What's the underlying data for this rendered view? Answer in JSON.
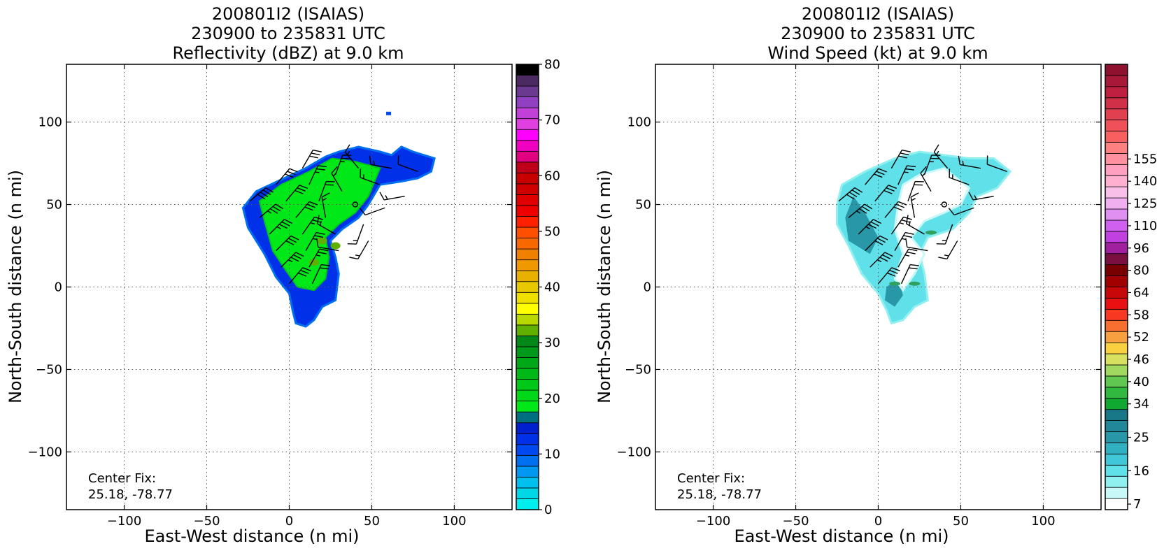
{
  "panels": [
    {
      "title_lines": [
        "200801I2 (ISAIAS)",
        "230900 to 235831 UTC",
        "Reflectivity (dBZ) at 9.0 km"
      ],
      "center_fix_label": "Center Fix:",
      "center_fix_value": "25.18, -78.77",
      "colorbar": {
        "min": 0,
        "max": 80,
        "tick_values": [
          0,
          10,
          20,
          30,
          40,
          50,
          60,
          70,
          80
        ],
        "tick_labels": [
          "0",
          "10",
          "20",
          "30",
          "40",
          "50",
          "60",
          "70",
          "80"
        ],
        "colors": [
          "#00eeee",
          "#00d8e8",
          "#00c0f0",
          "#0098f0",
          "#0070f0",
          "#0048f0",
          "#0030e8",
          "#0020d0",
          "#007080",
          "#00e818",
          "#00d818",
          "#00c818",
          "#00b818",
          "#00a818",
          "#009818",
          "#008818",
          "#60b000",
          "#b8d800",
          "#ffff00",
          "#f0e000",
          "#e8c800",
          "#e8b000",
          "#f09800",
          "#f08000",
          "#f86800",
          "#ff5000",
          "#ff2000",
          "#ee0000",
          "#e00000",
          "#d00000",
          "#c80000",
          "#c00018",
          "#e00080",
          "#f000c0",
          "#ff00ff",
          "#e040e0",
          "#c040d8",
          "#9040c0",
          "#6a3a90",
          "#4a2a60",
          "#000000"
        ]
      }
    },
    {
      "title_lines": [
        "200801I2 (ISAIAS)",
        "230900 to 235831 UTC",
        "Wind Speed (kt) at 9.0 km"
      ],
      "center_fix_label": "Center Fix:",
      "center_fix_value": "25.18, -78.77",
      "colorbar": {
        "tick_labels": [
          "7",
          "16",
          "25",
          "34",
          "40",
          "46",
          "52",
          "58",
          "64",
          "80",
          "96",
          "110",
          "125",
          "140",
          "155"
        ],
        "tick_bin_index": [
          0,
          3,
          6,
          9,
          11,
          13,
          15,
          17,
          19,
          21,
          23,
          25,
          27,
          29,
          31
        ],
        "colors": [
          "#ffffff",
          "#c8f8f8",
          "#90f0f0",
          "#60e0e8",
          "#40c8d8",
          "#30b0c0",
          "#2898a8",
          "#208898",
          "#187888",
          "#10a830",
          "#30b840",
          "#60c850",
          "#a0d860",
          "#d8e060",
          "#f8d040",
          "#f8a040",
          "#f87030",
          "#f83820",
          "#e81010",
          "#c80808",
          "#a00000",
          "#780000",
          "#7a1040",
          "#a020a0",
          "#c040e0",
          "#d060f0",
          "#e090f0",
          "#f0b0f0",
          "#f8c0e8",
          "#ffb0d0",
          "#ffa0c0",
          "#ff90a0",
          "#ff8080",
          "#f86060",
          "#f05058",
          "#e04050",
          "#d03048",
          "#c02040",
          "#a81838",
          "#901030"
        ]
      }
    }
  ],
  "axes": {
    "xlabel": "East-West distance (n mi)",
    "ylabel": "North-South distance (n mi)",
    "range": [
      -135,
      135
    ],
    "ticks": [
      -100,
      -50,
      0,
      50,
      100
    ],
    "tick_labels": [
      "−100",
      "−50",
      "0",
      "50",
      "100"
    ]
  },
  "chart_data": [
    {
      "type": "heatmap",
      "title": "200801I2 (ISAIAS) 230900 to 235831 UTC Reflectivity (dBZ) at 9.0 km",
      "xlabel": "East-West distance (n mi)",
      "ylabel": "North-South distance (n mi)",
      "xlim": [
        -135,
        135
      ],
      "ylim": [
        -135,
        135
      ],
      "grid": true,
      "colorbar_range": [
        0,
        80
      ],
      "echo_outline": [
        [
          -25,
          36
        ],
        [
          -28,
          48
        ],
        [
          -20,
          58
        ],
        [
          -5,
          65
        ],
        [
          10,
          72
        ],
        [
          22,
          79
        ],
        [
          30,
          82
        ],
        [
          42,
          85
        ],
        [
          55,
          82
        ],
        [
          62,
          80
        ],
        [
          68,
          85
        ],
        [
          75,
          82
        ],
        [
          88,
          78
        ],
        [
          86,
          70
        ],
        [
          78,
          66
        ],
        [
          68,
          64
        ],
        [
          55,
          62
        ],
        [
          48,
          50
        ],
        [
          42,
          42
        ],
        [
          32,
          35
        ],
        [
          25,
          28
        ],
        [
          28,
          18
        ],
        [
          30,
          8
        ],
        [
          28,
          -8
        ],
        [
          20,
          -12
        ],
        [
          15,
          -20
        ],
        [
          10,
          -24
        ],
        [
          4,
          -22
        ],
        [
          2,
          -14
        ],
        [
          0,
          -4
        ],
        [
          -8,
          6
        ],
        [
          -15,
          20
        ],
        [
          -20,
          28
        ]
      ],
      "inner_core": [
        [
          -15,
          40
        ],
        [
          -18,
          52
        ],
        [
          -5,
          62
        ],
        [
          12,
          70
        ],
        [
          26,
          78
        ],
        [
          40,
          76
        ],
        [
          55,
          72
        ],
        [
          48,
          55
        ],
        [
          40,
          45
        ],
        [
          30,
          38
        ],
        [
          22,
          30
        ],
        [
          24,
          18
        ],
        [
          22,
          5
        ],
        [
          15,
          -2
        ],
        [
          5,
          0
        ],
        [
          -2,
          10
        ],
        [
          -10,
          22
        ]
      ],
      "core_centers": [
        [
          20,
          28
        ],
        [
          15,
          15
        ],
        [
          28,
          25
        ]
      ],
      "isolated_echo": [
        [
          60,
          105
        ]
      ],
      "storm_center": [
        40,
        50
      ],
      "wind_barbs": [
        {
          "x": -24,
          "y": 52,
          "dir_deg": 50,
          "speed_kt": 40
        },
        {
          "x": -18,
          "y": 42,
          "dir_deg": 50,
          "speed_kt": 35
        },
        {
          "x": -12,
          "y": 32,
          "dir_deg": 45,
          "speed_kt": 35
        },
        {
          "x": -8,
          "y": 22,
          "dir_deg": 45,
          "speed_kt": 30
        },
        {
          "x": -5,
          "y": 12,
          "dir_deg": 45,
          "speed_kt": 35
        },
        {
          "x": 0,
          "y": 2,
          "dir_deg": 40,
          "speed_kt": 30
        },
        {
          "x": -8,
          "y": 62,
          "dir_deg": 40,
          "speed_kt": 30
        },
        {
          "x": -2,
          "y": 52,
          "dir_deg": 40,
          "speed_kt": 30
        },
        {
          "x": 4,
          "y": 42,
          "dir_deg": 40,
          "speed_kt": 30
        },
        {
          "x": 8,
          "y": 32,
          "dir_deg": 35,
          "speed_kt": 25
        },
        {
          "x": 10,
          "y": 22,
          "dir_deg": 30,
          "speed_kt": 25
        },
        {
          "x": 12,
          "y": 12,
          "dir_deg": 30,
          "speed_kt": 25
        },
        {
          "x": 14,
          "y": 2,
          "dir_deg": 25,
          "speed_kt": 20
        },
        {
          "x": 8,
          "y": 72,
          "dir_deg": 30,
          "speed_kt": 30
        },
        {
          "x": 12,
          "y": 62,
          "dir_deg": 25,
          "speed_kt": 25
        },
        {
          "x": 18,
          "y": 52,
          "dir_deg": 20,
          "speed_kt": 20
        },
        {
          "x": 22,
          "y": 42,
          "dir_deg": 350,
          "speed_kt": 15
        },
        {
          "x": 28,
          "y": 32,
          "dir_deg": 300,
          "speed_kt": 15
        },
        {
          "x": 30,
          "y": 22,
          "dir_deg": 280,
          "speed_kt": 10
        },
        {
          "x": 28,
          "y": 68,
          "dir_deg": 20,
          "speed_kt": 25
        },
        {
          "x": 32,
          "y": 58,
          "dir_deg": 330,
          "speed_kt": 15
        },
        {
          "x": 45,
          "y": 38,
          "dir_deg": 200,
          "speed_kt": 15
        },
        {
          "x": 48,
          "y": 28,
          "dir_deg": 210,
          "speed_kt": 15
        },
        {
          "x": 42,
          "y": 72,
          "dir_deg": 320,
          "speed_kt": 15
        },
        {
          "x": 55,
          "y": 62,
          "dir_deg": 290,
          "speed_kt": 15
        },
        {
          "x": 58,
          "y": 48,
          "dir_deg": 250,
          "speed_kt": 10
        },
        {
          "x": 62,
          "y": 72,
          "dir_deg": 280,
          "speed_kt": 15
        },
        {
          "x": 70,
          "y": 55,
          "dir_deg": 260,
          "speed_kt": 15
        },
        {
          "x": 78,
          "y": 70,
          "dir_deg": 290,
          "speed_kt": 10
        }
      ]
    },
    {
      "type": "heatmap",
      "title": "200801I2 (ISAIAS) 230900 to 235831 UTC Wind Speed (kt) at 9.0 km",
      "xlabel": "East-West distance (n mi)",
      "ylabel": "North-South distance (n mi)",
      "xlim": [
        -135,
        135
      ],
      "ylim": [
        -135,
        135
      ],
      "grid": true,
      "colorbar_levels": [
        "7",
        "16",
        "25",
        "34",
        "40",
        "46",
        "52",
        "58",
        "64",
        "80",
        "96",
        "110",
        "125",
        "140",
        "155"
      ],
      "wind_outline": [
        [
          -25,
          50
        ],
        [
          -22,
          62
        ],
        [
          -8,
          70
        ],
        [
          10,
          78
        ],
        [
          25,
          82
        ],
        [
          40,
          80
        ],
        [
          55,
          78
        ],
        [
          70,
          78
        ],
        [
          80,
          70
        ],
        [
          72,
          60
        ],
        [
          60,
          55
        ],
        [
          55,
          45
        ],
        [
          45,
          35
        ],
        [
          30,
          30
        ],
        [
          25,
          20
        ],
        [
          28,
          8
        ],
        [
          30,
          -8
        ],
        [
          22,
          -12
        ],
        [
          15,
          -20
        ],
        [
          8,
          -22
        ],
        [
          5,
          -14
        ],
        [
          0,
          -4
        ],
        [
          -10,
          8
        ],
        [
          -18,
          25
        ],
        [
          -25,
          38
        ]
      ],
      "white_gap": [
        [
          15,
          62
        ],
        [
          25,
          68
        ],
        [
          40,
          72
        ],
        [
          55,
          60
        ],
        [
          50,
          50
        ],
        [
          40,
          45
        ],
        [
          28,
          40
        ],
        [
          20,
          30
        ],
        [
          28,
          20
        ],
        [
          22,
          8
        ],
        [
          15,
          -2
        ],
        [
          10,
          5
        ],
        [
          15,
          20
        ],
        [
          10,
          35
        ],
        [
          12,
          50
        ]
      ],
      "dark_bands": [
        [
          [
            -5,
            20
          ],
          [
            0,
            30
          ],
          [
            -8,
            45
          ],
          [
            -15,
            55
          ],
          [
            -20,
            42
          ],
          [
            -18,
            28
          ]
        ],
        [
          [
            5,
            0
          ],
          [
            12,
            5
          ],
          [
            15,
            -5
          ],
          [
            10,
            -12
          ],
          [
            4,
            -8
          ]
        ]
      ],
      "strong_wind_patches": [
        [
          10,
          2
        ],
        [
          22,
          2
        ],
        [
          32,
          33
        ]
      ],
      "storm_center": [
        40,
        50
      ],
      "wind_barbs": [
        {
          "x": -24,
          "y": 52,
          "dir_deg": 50,
          "speed_kt": 40
        },
        {
          "x": -18,
          "y": 42,
          "dir_deg": 50,
          "speed_kt": 35
        },
        {
          "x": -12,
          "y": 32,
          "dir_deg": 45,
          "speed_kt": 35
        },
        {
          "x": -8,
          "y": 22,
          "dir_deg": 45,
          "speed_kt": 30
        },
        {
          "x": -5,
          "y": 12,
          "dir_deg": 45,
          "speed_kt": 35
        },
        {
          "x": 0,
          "y": 2,
          "dir_deg": 40,
          "speed_kt": 30
        },
        {
          "x": -8,
          "y": 62,
          "dir_deg": 40,
          "speed_kt": 30
        },
        {
          "x": -2,
          "y": 52,
          "dir_deg": 40,
          "speed_kt": 30
        },
        {
          "x": 4,
          "y": 42,
          "dir_deg": 40,
          "speed_kt": 30
        },
        {
          "x": 8,
          "y": 32,
          "dir_deg": 35,
          "speed_kt": 25
        },
        {
          "x": 10,
          "y": 22,
          "dir_deg": 30,
          "speed_kt": 25
        },
        {
          "x": 12,
          "y": 12,
          "dir_deg": 30,
          "speed_kt": 25
        },
        {
          "x": 14,
          "y": 2,
          "dir_deg": 25,
          "speed_kt": 20
        },
        {
          "x": 8,
          "y": 72,
          "dir_deg": 30,
          "speed_kt": 30
        },
        {
          "x": 12,
          "y": 62,
          "dir_deg": 25,
          "speed_kt": 25
        },
        {
          "x": 18,
          "y": 52,
          "dir_deg": 20,
          "speed_kt": 20
        },
        {
          "x": 22,
          "y": 42,
          "dir_deg": 350,
          "speed_kt": 15
        },
        {
          "x": 28,
          "y": 32,
          "dir_deg": 300,
          "speed_kt": 15
        },
        {
          "x": 30,
          "y": 22,
          "dir_deg": 280,
          "speed_kt": 10
        },
        {
          "x": 28,
          "y": 68,
          "dir_deg": 20,
          "speed_kt": 25
        },
        {
          "x": 32,
          "y": 58,
          "dir_deg": 330,
          "speed_kt": 15
        },
        {
          "x": 45,
          "y": 38,
          "dir_deg": 200,
          "speed_kt": 15
        },
        {
          "x": 48,
          "y": 28,
          "dir_deg": 210,
          "speed_kt": 15
        },
        {
          "x": 42,
          "y": 72,
          "dir_deg": 320,
          "speed_kt": 15
        },
        {
          "x": 55,
          "y": 62,
          "dir_deg": 290,
          "speed_kt": 15
        },
        {
          "x": 58,
          "y": 48,
          "dir_deg": 250,
          "speed_kt": 10
        },
        {
          "x": 62,
          "y": 72,
          "dir_deg": 280,
          "speed_kt": 15
        },
        {
          "x": 70,
          "y": 55,
          "dir_deg": 260,
          "speed_kt": 15
        },
        {
          "x": 78,
          "y": 70,
          "dir_deg": 290,
          "speed_kt": 10
        }
      ]
    }
  ]
}
